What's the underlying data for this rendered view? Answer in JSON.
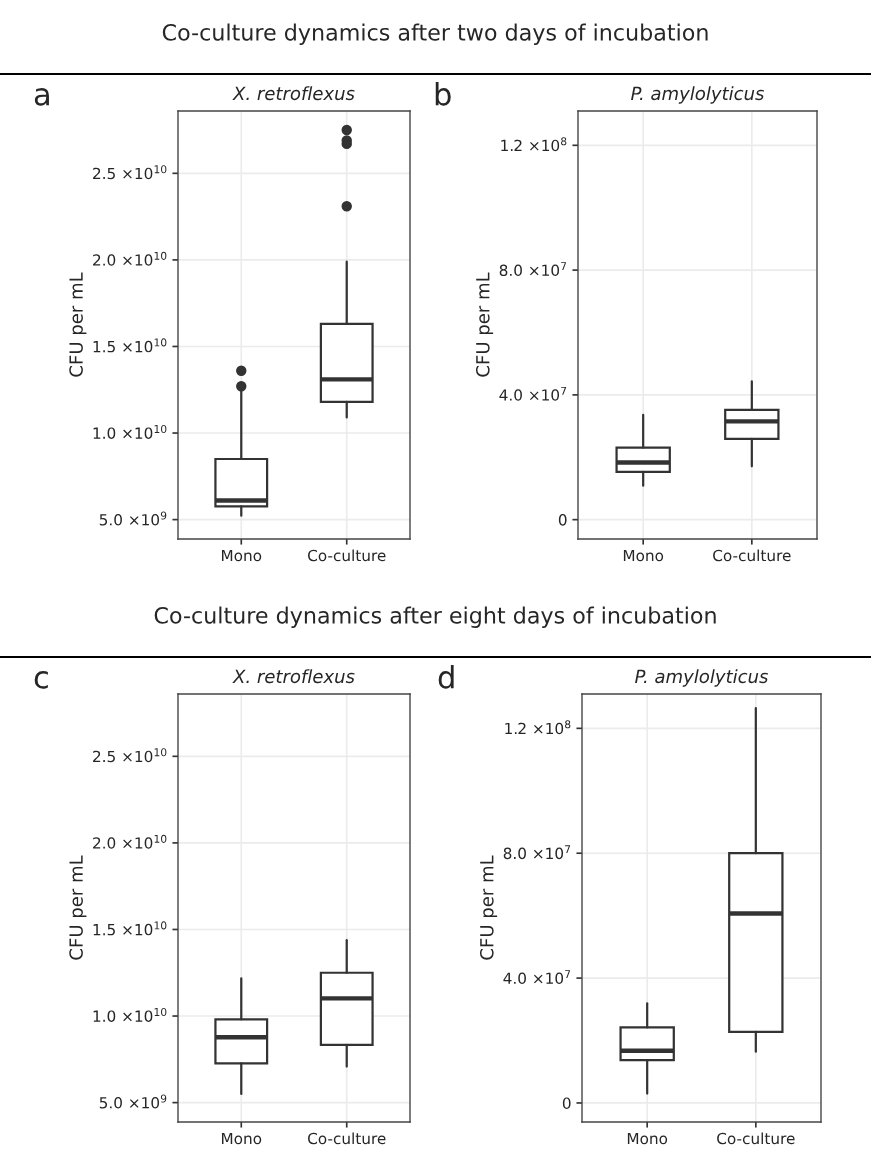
{
  "chart_data": [
    {
      "type": "box",
      "title": "X. retroflexus",
      "ylabel": "CFU per mL",
      "annotations": [
        "a",
        "Co-culture dynamics after two days of incubation"
      ],
      "categories": [
        "Mono",
        "Co-culture"
      ],
      "color": "#333333",
      "grid": true,
      "ylim": [
        3880000000.0,
        28600000000.0
      ],
      "yticks": [
        {
          "value": 5000000000.0,
          "label": "5.0 ×10$^{9}$"
        },
        {
          "value": 10000000000.0,
          "label": "1.0 ×10$^{10}$"
        },
        {
          "value": 15000000000.0,
          "label": "1.5 ×10$^{10}$"
        },
        {
          "value": 20000000000.0,
          "label": "2.0 ×10$^{10}$"
        },
        {
          "value": 25000000000.0,
          "label": "2.5 ×10$^{10}$"
        }
      ],
      "boxes": [
        {
          "low": 5230000000.0,
          "q1": 5770000000.0,
          "median": 6100000000.0,
          "q3": 8500000000.0,
          "high": 12500000000.0,
          "outliers": [
            12700000000.0,
            13600000000.0
          ]
        },
        {
          "low": 10900000000.0,
          "q1": 11800000000.0,
          "median": 13100000000.0,
          "q3": 16300000000.0,
          "high": 19900000000.0,
          "outliers": [
            23100000000.0,
            26700000000.0,
            26900000000.0,
            27500000000.0
          ]
        }
      ]
    },
    {
      "type": "box",
      "title": "P. amylolyticus",
      "ylabel": "CFU per mL",
      "annotations": [
        "b"
      ],
      "categories": [
        "Mono",
        "Co-culture"
      ],
      "color": "#333333",
      "grid": true,
      "ylim": [
        -6200000.0,
        131000000.0
      ],
      "yticks": [
        0,
        {
          "value": 40000000.0,
          "label": "4.0 ×10$^{7}$"
        },
        {
          "value": 80000000.0,
          "label": "8.0 ×10$^{7}$"
        },
        {
          "value": 120000000.0,
          "label": "1.2 ×10$^{8}$"
        }
      ],
      "boxes": [
        {
          "low": 10900000.0,
          "q1": 15300000.0,
          "median": 18300000.0,
          "q3": 23100000.0,
          "high": 33600000.0
        },
        {
          "low": 17100000.0,
          "q1": 25900000.0,
          "median": 31500000.0,
          "q3": 35200000.0,
          "high": 44300000.0
        }
      ]
    },
    {
      "type": "box",
      "title": "X. retroflexus",
      "ylabel": "CFU per mL",
      "annotations": [
        "c",
        "Co-culture dynamics after eight days of incubation"
      ],
      "categories": [
        "Mono",
        "Co-culture"
      ],
      "color": "#333333",
      "grid": true,
      "ylim": [
        3880000000.0,
        28600000000.0
      ],
      "yticks": [
        {
          "value": 5000000000.0,
          "label": "5.0 ×10$^{9}$"
        },
        {
          "value": 10000000000.0,
          "label": "1.0 ×10$^{10}$"
        },
        {
          "value": 15000000000.0,
          "label": "1.5 ×10$^{10}$"
        },
        {
          "value": 20000000000.0,
          "label": "2.0 ×10$^{10}$"
        },
        {
          "value": 25000000000.0,
          "label": "2.5 ×10$^{10}$"
        }
      ],
      "boxes": [
        {
          "low": 5500000000.0,
          "q1": 7270000000.0,
          "median": 8770000000.0,
          "q3": 9810000000.0,
          "high": 12170000000.0
        },
        {
          "low": 7080000000.0,
          "q1": 8330000000.0,
          "median": 11020000000.0,
          "q3": 12500000000.0,
          "high": 14380000000.0
        }
      ]
    },
    {
      "type": "box",
      "title": "P. amylolyticus",
      "ylabel": "CFU per mL",
      "annotations": [
        "d"
      ],
      "categories": [
        "Mono",
        "Co-culture"
      ],
      "color": "#333333",
      "grid": true,
      "ylim": [
        -6100000.0,
        131000000.0
      ],
      "yticks": [
        0,
        {
          "value": 40000000.0,
          "label": "4.0 ×10$^{7}$"
        },
        {
          "value": 80000000.0,
          "label": "8.0 ×10$^{7}$"
        },
        {
          "value": 120000000.0,
          "label": "1.2 ×10$^{8}$"
        }
      ],
      "boxes": [
        {
          "low": 3000000.0,
          "q1": 13700000.0,
          "median": 16700000.0,
          "q3": 24200000.0,
          "high": 31900000.0
        },
        {
          "low": 16400000.0,
          "q1": 22800000.0,
          "median": 60700000.0,
          "q3": 80000000.0,
          "high": 126500000.0
        }
      ]
    }
  ]
}
